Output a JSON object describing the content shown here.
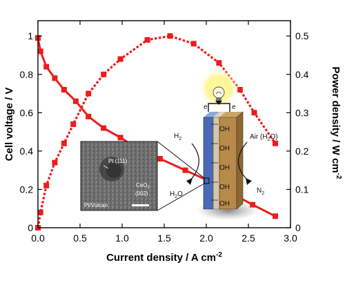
{
  "chart_data": {
    "type": "line",
    "xlabel": "Current density / A cm",
    "xlabel_sup": "-2",
    "ylabel_left": "Cell voltage / V",
    "ylabel_right": "Power density / W cm",
    "ylabel_right_sup": "-2",
    "xlim": [
      0,
      3.0
    ],
    "ylim_left": [
      0,
      1.08
    ],
    "ylim_right": [
      0,
      0.54
    ],
    "x_ticks": [
      "0.0",
      "0.5",
      "1.0",
      "1.5",
      "2.0",
      "2.5",
      "3.0"
    ],
    "y_left_ticks": [
      "0",
      "0.2",
      "0.4",
      "0.6",
      "0.8",
      "1"
    ],
    "y_right_ticks": [
      "0",
      "0.1",
      "0.2",
      "0.3",
      "0.4",
      "0.5"
    ],
    "series": [
      {
        "axis": "left",
        "style": "solid",
        "x": [
          0.0,
          0.03,
          0.1,
          0.2,
          0.31,
          0.45,
          0.6,
          0.78,
          0.98,
          1.2,
          1.45,
          1.75,
          2.05,
          2.3,
          2.55,
          2.82
        ],
        "values": [
          0.99,
          0.92,
          0.84,
          0.78,
          0.72,
          0.66,
          0.58,
          0.52,
          0.47,
          0.41,
          0.36,
          0.3,
          0.24,
          0.18,
          0.12,
          0.06
        ]
      },
      {
        "axis": "right",
        "style": "dotted",
        "x": [
          0.0,
          0.03,
          0.1,
          0.2,
          0.31,
          0.42,
          0.6,
          0.78,
          0.98,
          1.3,
          1.57,
          1.85,
          2.15,
          2.4,
          2.57,
          2.82
        ],
        "values": [
          0.0,
          0.04,
          0.11,
          0.17,
          0.22,
          0.27,
          0.35,
          0.4,
          0.44,
          0.49,
          0.5,
          0.48,
          0.43,
          0.36,
          0.3,
          0.22
        ]
      }
    ],
    "inset_tem": {
      "labels": [
        "Pt (111)",
        "CeO",
        "(002)",
        "CeO",
        "2",
        "Pt/Vulcan"
      ]
    },
    "schematic": {
      "labels": [
        "H",
        "2",
        "H",
        "2",
        "O",
        "Air (H",
        "2",
        "O)",
        "N",
        "2",
        "OH",
        "e"
      ]
    },
    "colors": {
      "series": "#ee1c1c",
      "grid_axis": "#000000"
    }
  }
}
